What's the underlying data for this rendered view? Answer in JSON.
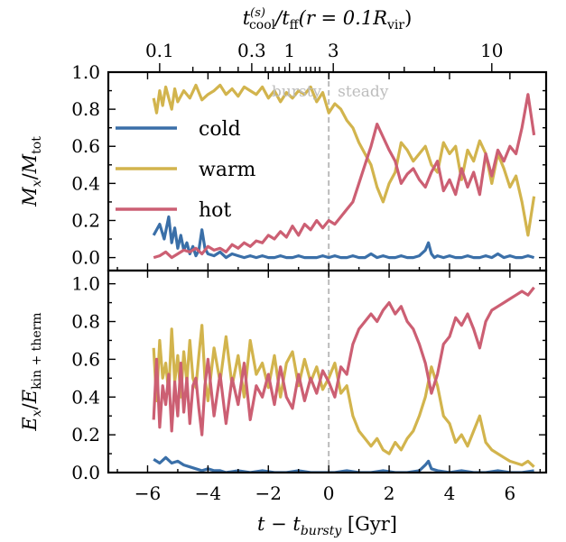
{
  "chart_data": {
    "type": "line",
    "xlabel": "t − t",
    "xlabel_sub": "bursty",
    "xlabel_unit": " [Gyr]",
    "xlim": [
      -7.3,
      7.2
    ],
    "xticks": [
      -6,
      -4,
      -2,
      0,
      2,
      4,
      6
    ],
    "xtick_labels": [
      "−6",
      "−4",
      "−2",
      "0",
      "2",
      "4",
      "6"
    ],
    "top_axis": {
      "label_parts": [
        "t",
        "(s)",
        "cool",
        "/t",
        "ff",
        "(r = 0.1R",
        "vir",
        ")"
      ],
      "labeled_ticks": [
        {
          "label": "0.1",
          "x": -5.6
        },
        {
          "label": "0.3",
          "x": -2.55
        },
        {
          "label": "1",
          "x": -1.3
        },
        {
          "label": "3",
          "x": 0.15
        },
        {
          "label": "10",
          "x": 5.4
        }
      ],
      "minor_ticks": [
        -4.5,
        -3.6,
        -3.0,
        -2.1,
        -1.85,
        -1.65,
        -1.45,
        -0.95,
        -0.75,
        -0.6,
        -0.45,
        -0.3,
        2.5,
        3.5
      ]
    },
    "vline": {
      "x": 0,
      "color": "#bbbbbb",
      "style": "dashed"
    },
    "annotations": {
      "left": "bursty",
      "right": "steady"
    },
    "legend": {
      "placement": "center-left",
      "entries": [
        "cold",
        "warm",
        "hot"
      ]
    },
    "colors": {
      "cold": "#3a6fa8",
      "warm": "#d2b44d",
      "hot": "#cc5f73"
    },
    "panels": [
      {
        "ylabel": "M",
        "ylabel_sub": "x",
        "ylabel_den": "M",
        "ylabel_den_sub": "tot",
        "ylim": [
          -0.07,
          1.0
        ],
        "yticks": [
          0.0,
          0.2,
          0.4,
          0.6,
          0.8,
          1.0
        ],
        "ytick_labels": [
          "0.0",
          "0.2",
          "0.4",
          "0.6",
          "0.8",
          "1.0"
        ],
        "series": [
          {
            "name": "cold",
            "x": [
              -5.8,
              -5.6,
              -5.45,
              -5.3,
              -5.2,
              -5.1,
              -5.0,
              -4.9,
              -4.8,
              -4.7,
              -4.6,
              -4.5,
              -4.4,
              -4.3,
              -4.2,
              -4.1,
              -4.0,
              -3.8,
              -3.6,
              -3.4,
              -3.2,
              -3.0,
              -2.8,
              -2.6,
              -2.4,
              -2.2,
              -2.0,
              -1.8,
              -1.6,
              -1.4,
              -1.2,
              -1.0,
              -0.8,
              -0.6,
              -0.4,
              -0.2,
              0.0,
              0.2,
              0.4,
              0.6,
              0.8,
              1.0,
              1.2,
              1.4,
              1.6,
              1.8,
              2.0,
              2.2,
              2.4,
              2.6,
              2.8,
              3.0,
              3.2,
              3.3,
              3.4,
              3.5,
              3.6,
              3.8,
              4.0,
              4.2,
              4.4,
              4.6,
              4.8,
              5.0,
              5.2,
              5.4,
              5.6,
              5.8,
              6.0,
              6.2,
              6.4,
              6.6,
              6.8
            ],
            "y": [
              0.12,
              0.18,
              0.1,
              0.22,
              0.08,
              0.16,
              0.05,
              0.12,
              0.04,
              0.08,
              0.02,
              0.06,
              0.01,
              0.04,
              0.15,
              0.05,
              0.02,
              0.01,
              0.03,
              0.0,
              0.02,
              0.01,
              0.0,
              0.01,
              0.0,
              0.01,
              0.0,
              0.0,
              0.01,
              0.0,
              0.0,
              0.01,
              0.0,
              0.0,
              0.0,
              0.01,
              0.0,
              0.01,
              0.0,
              0.0,
              0.01,
              0.0,
              0.0,
              0.02,
              0.0,
              0.01,
              0.0,
              0.0,
              0.01,
              0.0,
              0.0,
              0.01,
              0.04,
              0.08,
              0.02,
              0.0,
              0.01,
              0.0,
              0.01,
              0.0,
              0.0,
              0.01,
              0.0,
              0.0,
              0.01,
              0.0,
              0.02,
              0.0,
              0.01,
              0.0,
              0.0,
              0.01,
              0.0
            ]
          },
          {
            "name": "warm",
            "x": [
              -5.8,
              -5.7,
              -5.6,
              -5.5,
              -5.4,
              -5.3,
              -5.2,
              -5.1,
              -5.0,
              -4.8,
              -4.6,
              -4.4,
              -4.2,
              -4.0,
              -3.8,
              -3.6,
              -3.4,
              -3.2,
              -3.0,
              -2.8,
              -2.6,
              -2.4,
              -2.2,
              -2.0,
              -1.8,
              -1.6,
              -1.4,
              -1.2,
              -1.0,
              -0.8,
              -0.6,
              -0.4,
              -0.2,
              0.0,
              0.2,
              0.4,
              0.6,
              0.8,
              1.0,
              1.2,
              1.4,
              1.6,
              1.8,
              2.0,
              2.2,
              2.4,
              2.6,
              2.8,
              3.0,
              3.2,
              3.4,
              3.6,
              3.8,
              4.0,
              4.2,
              4.4,
              4.6,
              4.8,
              5.0,
              5.2,
              5.4,
              5.6,
              5.8,
              6.0,
              6.2,
              6.4,
              6.6,
              6.8
            ],
            "y": [
              0.86,
              0.78,
              0.9,
              0.82,
              0.92,
              0.86,
              0.8,
              0.91,
              0.84,
              0.9,
              0.86,
              0.93,
              0.85,
              0.88,
              0.9,
              0.93,
              0.88,
              0.91,
              0.87,
              0.92,
              0.9,
              0.88,
              0.92,
              0.86,
              0.9,
              0.84,
              0.89,
              0.86,
              0.9,
              0.88,
              0.92,
              0.84,
              0.89,
              0.78,
              0.83,
              0.8,
              0.74,
              0.7,
              0.62,
              0.56,
              0.5,
              0.38,
              0.3,
              0.4,
              0.46,
              0.62,
              0.58,
              0.52,
              0.56,
              0.6,
              0.5,
              0.46,
              0.62,
              0.56,
              0.6,
              0.42,
              0.58,
              0.52,
              0.63,
              0.56,
              0.4,
              0.56,
              0.48,
              0.38,
              0.44,
              0.3,
              0.12,
              0.33
            ]
          },
          {
            "name": "hot",
            "x": [
              -5.8,
              -5.6,
              -5.4,
              -5.2,
              -5.0,
              -4.8,
              -4.6,
              -4.4,
              -4.2,
              -4.0,
              -3.8,
              -3.6,
              -3.4,
              -3.2,
              -3.0,
              -2.8,
              -2.6,
              -2.4,
              -2.2,
              -2.0,
              -1.8,
              -1.6,
              -1.4,
              -1.2,
              -1.0,
              -0.8,
              -0.6,
              -0.4,
              -0.2,
              0.0,
              0.2,
              0.4,
              0.6,
              0.8,
              1.0,
              1.2,
              1.4,
              1.6,
              1.8,
              2.0,
              2.2,
              2.4,
              2.6,
              2.8,
              3.0,
              3.2,
              3.4,
              3.6,
              3.8,
              4.0,
              4.2,
              4.4,
              4.6,
              4.8,
              5.0,
              5.2,
              5.4,
              5.6,
              5.8,
              6.0,
              6.2,
              6.4,
              6.6,
              6.8
            ],
            "y": [
              0.0,
              0.01,
              0.03,
              0.0,
              0.02,
              0.04,
              0.03,
              0.05,
              0.02,
              0.06,
              0.04,
              0.05,
              0.03,
              0.07,
              0.05,
              0.08,
              0.06,
              0.09,
              0.08,
              0.12,
              0.1,
              0.14,
              0.11,
              0.17,
              0.12,
              0.18,
              0.15,
              0.2,
              0.16,
              0.2,
              0.18,
              0.22,
              0.26,
              0.3,
              0.4,
              0.5,
              0.6,
              0.72,
              0.65,
              0.58,
              0.52,
              0.4,
              0.45,
              0.48,
              0.42,
              0.38,
              0.46,
              0.52,
              0.36,
              0.42,
              0.34,
              0.48,
              0.38,
              0.46,
              0.34,
              0.56,
              0.44,
              0.58,
              0.52,
              0.6,
              0.56,
              0.7,
              0.88,
              0.66
            ]
          }
        ]
      },
      {
        "ylabel": "E",
        "ylabel_sub": "x",
        "ylabel_den": "E",
        "ylabel_den_sub": "kin + therm",
        "ylim": [
          0.0,
          1.07
        ],
        "yticks": [
          0.0,
          0.2,
          0.4,
          0.6,
          0.8,
          1.0
        ],
        "ytick_labels": [
          "0.0",
          "0.2",
          "0.4",
          "0.6",
          "0.8",
          "1.0"
        ],
        "series": [
          {
            "name": "cold",
            "x": [
              -5.8,
              -5.6,
              -5.4,
              -5.2,
              -5.0,
              -4.8,
              -4.6,
              -4.4,
              -4.2,
              -4.0,
              -3.8,
              -3.6,
              -3.4,
              -3.0,
              -2.6,
              -2.2,
              -1.8,
              -1.4,
              -1.0,
              -0.6,
              -0.2,
              0.2,
              0.6,
              1.0,
              1.4,
              1.8,
              2.2,
              2.6,
              3.0,
              3.2,
              3.3,
              3.4,
              3.6,
              4.0,
              4.4,
              4.8,
              5.2,
              5.6,
              6.0,
              6.4,
              6.8
            ],
            "y": [
              0.07,
              0.05,
              0.08,
              0.05,
              0.06,
              0.04,
              0.03,
              0.02,
              0.01,
              0.02,
              0.01,
              0.01,
              0.0,
              0.01,
              0.0,
              0.01,
              0.0,
              0.0,
              0.01,
              0.0,
              0.0,
              0.0,
              0.01,
              0.0,
              0.0,
              0.01,
              0.0,
              0.0,
              0.01,
              0.04,
              0.06,
              0.02,
              0.01,
              0.0,
              0.01,
              0.0,
              0.0,
              0.01,
              0.0,
              0.0,
              0.01
            ]
          },
          {
            "name": "warm",
            "x": [
              -5.8,
              -5.7,
              -5.6,
              -5.5,
              -5.4,
              -5.3,
              -5.2,
              -5.1,
              -5.0,
              -4.9,
              -4.8,
              -4.7,
              -4.6,
              -4.5,
              -4.4,
              -4.3,
              -4.2,
              -4.1,
              -4.0,
              -3.8,
              -3.6,
              -3.4,
              -3.2,
              -3.0,
              -2.8,
              -2.6,
              -2.4,
              -2.2,
              -2.0,
              -1.8,
              -1.6,
              -1.4,
              -1.2,
              -1.0,
              -0.8,
              -0.6,
              -0.4,
              -0.2,
              0.0,
              0.2,
              0.4,
              0.6,
              0.8,
              1.0,
              1.2,
              1.4,
              1.6,
              1.8,
              2.0,
              2.2,
              2.4,
              2.6,
              2.8,
              3.0,
              3.2,
              3.4,
              3.6,
              3.8,
              4.0,
              4.2,
              4.4,
              4.6,
              4.8,
              5.0,
              5.2,
              5.4,
              5.6,
              5.8,
              6.0,
              6.2,
              6.4,
              6.6,
              6.8
            ],
            "y": [
              0.66,
              0.38,
              0.7,
              0.5,
              0.58,
              0.42,
              0.76,
              0.48,
              0.62,
              0.4,
              0.64,
              0.48,
              0.7,
              0.5,
              0.45,
              0.62,
              0.78,
              0.5,
              0.38,
              0.66,
              0.48,
              0.72,
              0.46,
              0.62,
              0.4,
              0.7,
              0.52,
              0.58,
              0.45,
              0.62,
              0.4,
              0.58,
              0.64,
              0.46,
              0.6,
              0.48,
              0.56,
              0.44,
              0.5,
              0.58,
              0.42,
              0.46,
              0.3,
              0.22,
              0.18,
              0.14,
              0.18,
              0.12,
              0.1,
              0.16,
              0.12,
              0.18,
              0.22,
              0.3,
              0.4,
              0.56,
              0.46,
              0.3,
              0.26,
              0.16,
              0.2,
              0.14,
              0.22,
              0.3,
              0.16,
              0.12,
              0.1,
              0.08,
              0.06,
              0.05,
              0.04,
              0.06,
              0.03
            ]
          },
          {
            "name": "hot",
            "x": [
              -5.8,
              -5.7,
              -5.6,
              -5.5,
              -5.4,
              -5.3,
              -5.2,
              -5.1,
              -5.0,
              -4.9,
              -4.8,
              -4.7,
              -4.6,
              -4.5,
              -4.4,
              -4.3,
              -4.2,
              -4.1,
              -4.0,
              -3.8,
              -3.6,
              -3.4,
              -3.2,
              -3.0,
              -2.8,
              -2.6,
              -2.4,
              -2.2,
              -2.0,
              -1.8,
              -1.6,
              -1.4,
              -1.2,
              -1.0,
              -0.8,
              -0.6,
              -0.4,
              -0.2,
              0.0,
              0.2,
              0.4,
              0.6,
              0.8,
              1.0,
              1.2,
              1.4,
              1.6,
              1.8,
              2.0,
              2.2,
              2.4,
              2.6,
              2.8,
              3.0,
              3.2,
              3.4,
              3.6,
              3.8,
              4.0,
              4.2,
              4.4,
              4.6,
              4.8,
              5.0,
              5.2,
              5.4,
              5.6,
              5.8,
              6.0,
              6.2,
              6.4,
              6.6,
              6.8
            ],
            "y": [
              0.28,
              0.6,
              0.24,
              0.46,
              0.36,
              0.52,
              0.22,
              0.48,
              0.3,
              0.58,
              0.32,
              0.5,
              0.26,
              0.46,
              0.5,
              0.34,
              0.2,
              0.46,
              0.6,
              0.3,
              0.52,
              0.26,
              0.5,
              0.36,
              0.58,
              0.28,
              0.46,
              0.4,
              0.52,
              0.36,
              0.56,
              0.4,
              0.34,
              0.52,
              0.38,
              0.5,
              0.42,
              0.54,
              0.48,
              0.4,
              0.56,
              0.52,
              0.68,
              0.76,
              0.8,
              0.84,
              0.8,
              0.86,
              0.9,
              0.84,
              0.88,
              0.8,
              0.76,
              0.68,
              0.58,
              0.42,
              0.52,
              0.68,
              0.72,
              0.82,
              0.78,
              0.84,
              0.76,
              0.66,
              0.8,
              0.86,
              0.88,
              0.9,
              0.92,
              0.94,
              0.96,
              0.94,
              0.98
            ]
          }
        ]
      }
    ]
  }
}
